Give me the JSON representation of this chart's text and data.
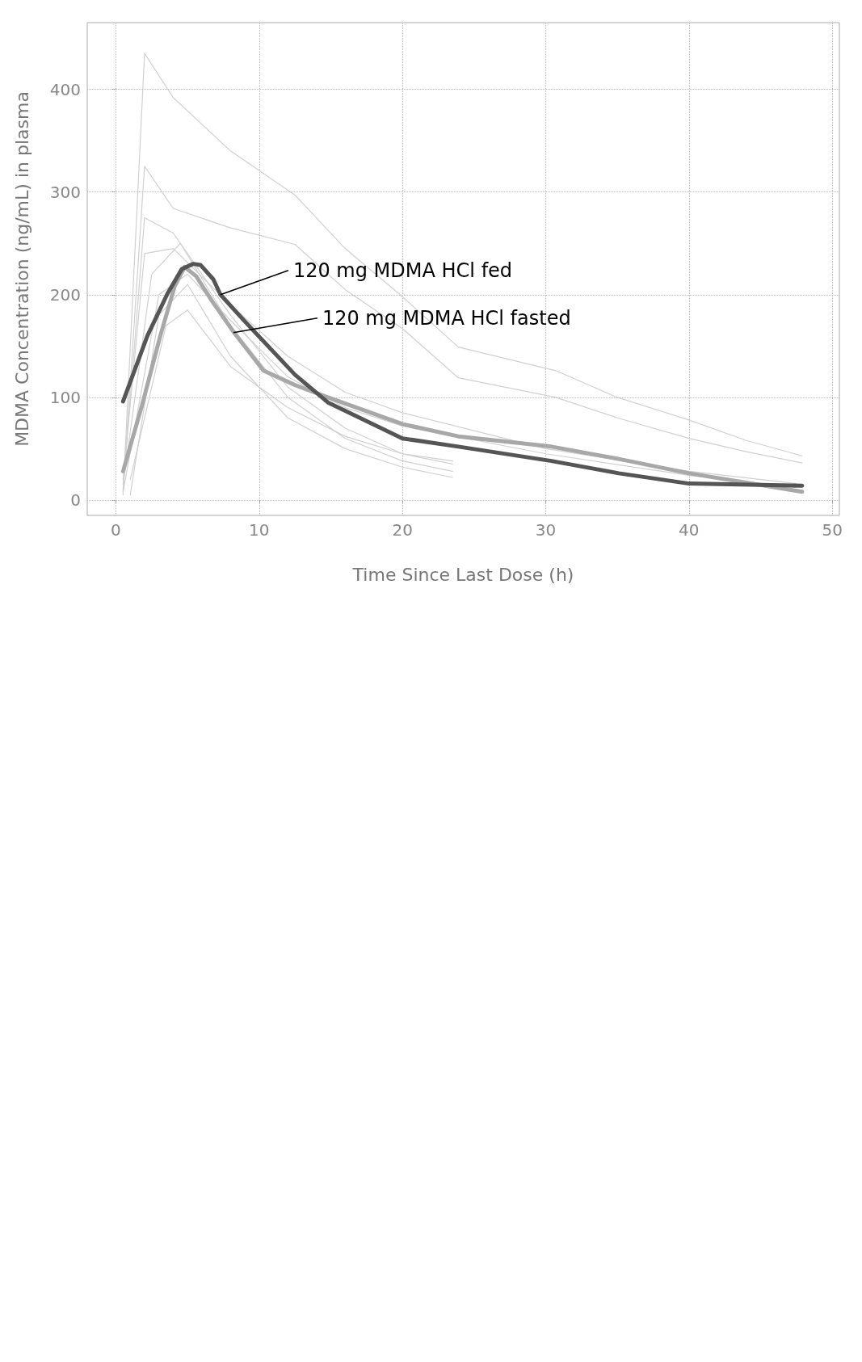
{
  "chart_data": {
    "type": "line",
    "xlabel": "Time Since Last Dose (h)",
    "ylabel": "MDMA Concentration (ng/mL) in plasma",
    "xlim": [
      -2,
      50.5
    ],
    "xticks": [
      0,
      10,
      20,
      30,
      40,
      50
    ],
    "ylim": [
      -15,
      465
    ],
    "yticks": [
      0,
      100,
      200,
      300,
      400
    ],
    "grid": true,
    "marker": "none",
    "line_style": "solid",
    "annotations": [
      {
        "text": "120 mg MDMA HCl fed",
        "x": 7.3,
        "y": 200
      },
      {
        "text": "120 mg MDMA HCl fasted",
        "x": 8.2,
        "y": 163
      }
    ],
    "series": [
      {
        "color": "#d0d0d0",
        "x": [
          0.5,
          2,
          4,
          8,
          12.5,
          16,
          20,
          23.9,
          30.7,
          35,
          40,
          44,
          47.9
        ],
        "values": [
          5,
          435,
          392,
          340,
          297,
          245,
          198,
          149,
          126,
          100,
          78,
          58,
          43
        ]
      },
      {
        "color": "#d0d0d0",
        "x": [
          0.5,
          2,
          4,
          8,
          12.5,
          16,
          20,
          23.9,
          30.7,
          35,
          40,
          44,
          47.9
        ],
        "values": [
          8,
          325,
          284,
          265,
          249,
          205,
          167,
          119,
          100,
          80,
          60,
          47,
          36
        ]
      },
      {
        "color": "#d0d0d0",
        "x": [
          0.5,
          2,
          4,
          8,
          12,
          16,
          20,
          23.5
        ],
        "values": [
          10,
          275,
          260,
          180,
          110,
          70,
          45,
          35
        ]
      },
      {
        "color": "#d0d0d0",
        "x": [
          0.5,
          2.5,
          4.5,
          8,
          12,
          16,
          20,
          23.5
        ],
        "values": [
          15,
          220,
          250,
          170,
          100,
          60,
          38,
          28
        ]
      },
      {
        "color": "#d0d0d0",
        "x": [
          1,
          3,
          5,
          8,
          12,
          16,
          20,
          23.5
        ],
        "values": [
          5,
          180,
          210,
          140,
          80,
          50,
          32,
          22
        ]
      },
      {
        "color": "#d0d0d0",
        "x": [
          1,
          3.5,
          5,
          8,
          12,
          16,
          20,
          23.5
        ],
        "values": [
          20,
          170,
          185,
          130,
          90,
          62,
          45,
          38
        ]
      },
      {
        "color": "#d0d0d0",
        "x": [
          0.5,
          2,
          4,
          8,
          12,
          16,
          20,
          30,
          40,
          47.5
        ],
        "values": [
          20,
          240,
          245,
          190,
          140,
          105,
          85,
          50,
          28,
          16
        ]
      },
      {
        "color": "#d0d0d0",
        "x": [
          0.5,
          3,
          5,
          8,
          12,
          16,
          20,
          30,
          40,
          47.5
        ],
        "values": [
          8,
          200,
          220,
          175,
          120,
          90,
          72,
          45,
          24,
          12
        ]
      },
      {
        "color": "#a8a8a8",
        "x": [
          0.5,
          1.8,
          3.1,
          4.1,
          4.8,
          5.6,
          6.7,
          8.3,
          10.3,
          12.5,
          14.8,
          20,
          23.9,
          30.4,
          35.1,
          40,
          47.9
        ],
        "values": [
          28,
          91,
          160,
          208,
          227,
          218,
          194,
          162,
          126,
          112,
          100,
          74,
          62,
          52,
          40,
          26,
          8
        ]
      },
      {
        "color": "#555555",
        "x": [
          0.5,
          2.2,
          3.6,
          4.6,
          5.4,
          5.9,
          6.8,
          7.3,
          9,
          12.5,
          14.8,
          20,
          23.9,
          30.4,
          35.1,
          40,
          47.9
        ],
        "values": [
          96,
          160,
          201,
          225,
          230,
          229,
          215,
          200,
          174,
          122,
          95,
          60,
          52,
          38,
          26,
          16,
          14
        ]
      }
    ]
  }
}
